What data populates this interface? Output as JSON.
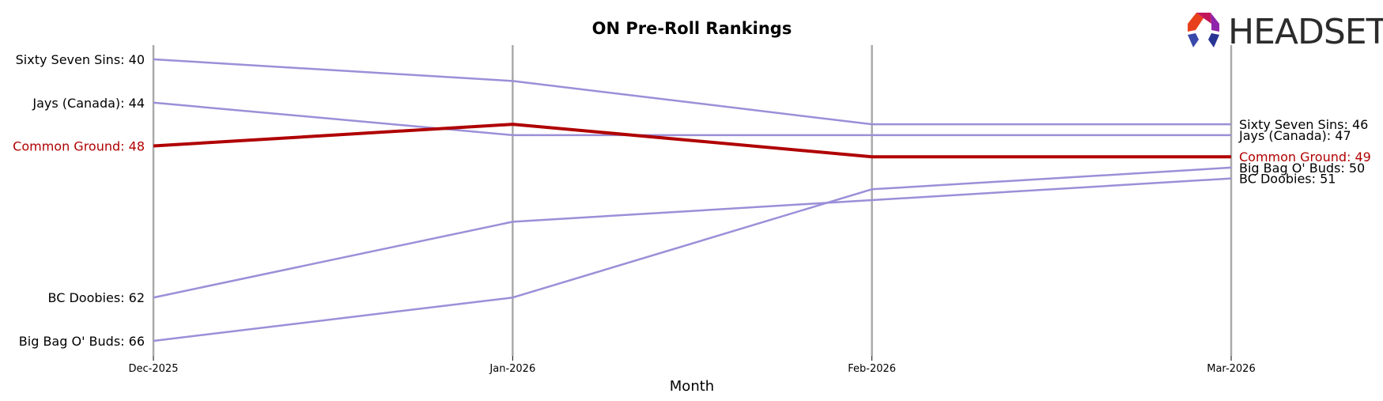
{
  "chart_data": {
    "type": "line",
    "title": "ON Pre-Roll Rankings",
    "xlabel": "Month",
    "ylabel": "",
    "x": [
      "Dec-2025",
      "Jan-2026",
      "Feb-2026",
      "Mar-2026"
    ],
    "y_inverted": true,
    "ylim": [
      38,
      67
    ],
    "grid": "vertical",
    "series": [
      {
        "name": "Sixty Seven Sins",
        "values": [
          40,
          42,
          46,
          46
        ],
        "color": "#9b8fd8",
        "highlight": false,
        "start_label": "Sixty Seven Sins: 40",
        "end_label": "Sixty Seven Sins: 46"
      },
      {
        "name": "Jays (Canada)",
        "values": [
          44,
          47,
          47,
          47
        ],
        "color": "#9b8fd8",
        "highlight": false,
        "start_label": "Jays (Canada): 44",
        "end_label": "Jays (Canada): 47"
      },
      {
        "name": "Common Ground",
        "values": [
          48,
          46,
          49,
          49
        ],
        "color": "#b00000",
        "highlight": true,
        "start_label": "Common Ground: 48",
        "end_label": "Common Ground: 49"
      },
      {
        "name": "BC Doobies",
        "values": [
          62,
          55,
          53,
          51
        ],
        "color": "#9b8fd8",
        "highlight": false,
        "start_label": "BC Doobies: 62",
        "end_label": "BC Doobies: 51"
      },
      {
        "name": "Big Bag O' Buds",
        "values": [
          66,
          62,
          52,
          50
        ],
        "color": "#9b8fd8",
        "highlight": false,
        "start_label": "Big Bag O' Buds: 66",
        "end_label": "Big Bag O' Buds: 50"
      }
    ]
  },
  "logo": {
    "text": "HEADSET",
    "colors": [
      "#e8401c",
      "#c2185b",
      "#7b1fa2",
      "#283593"
    ]
  }
}
